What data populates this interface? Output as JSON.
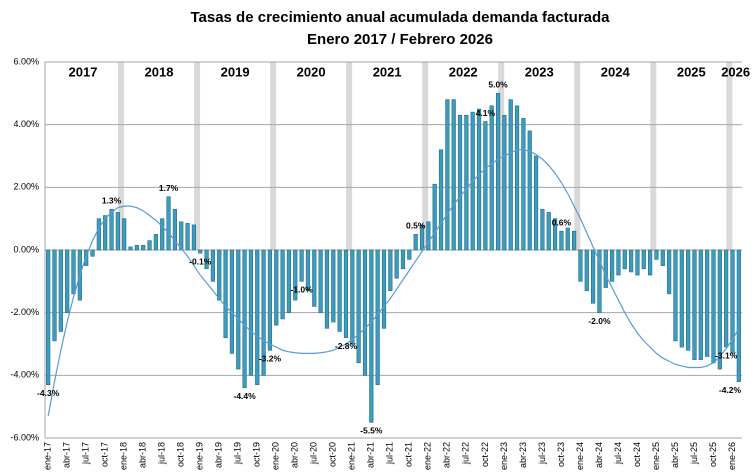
{
  "chart_data": {
    "type": "bar",
    "title": "Tasas de crecimiento anual acumulada demanda facturada",
    "subtitle": "Enero 2017 / Febrero 2026",
    "year_labels": [
      "2017",
      "2018",
      "2019",
      "2020",
      "2021",
      "2022",
      "2023",
      "2024",
      "2025",
      "2026"
    ],
    "categories": [
      "ene-17",
      null,
      null,
      "abr-17",
      null,
      null,
      "jul-17",
      null,
      null,
      "oct-17",
      null,
      null,
      "ene-18",
      null,
      null,
      "abr-18",
      null,
      null,
      "jul-18",
      null,
      null,
      "oct-18",
      null,
      null,
      "ene-19",
      null,
      null,
      "abr-19",
      null,
      null,
      "jul-19",
      null,
      null,
      "oct-19",
      null,
      null,
      "ene-20",
      null,
      null,
      "abr-20",
      null,
      null,
      "jul-20",
      null,
      null,
      "oct-20",
      null,
      null,
      "ene-21",
      null,
      null,
      "abr-21",
      null,
      null,
      "jul-21",
      null,
      null,
      "oct-21",
      null,
      null,
      "ene-22",
      null,
      null,
      "abr-22",
      null,
      null,
      "jul-22",
      null,
      null,
      "oct-22",
      null,
      null,
      "ene-23",
      null,
      null,
      "abr-23",
      null,
      null,
      "jul-23",
      null,
      null,
      "oct-23",
      null,
      null,
      "ene-24",
      null,
      null,
      "abr-24",
      null,
      null,
      "jul-24",
      null,
      null,
      "oct-24",
      null,
      null,
      "ene-25",
      null,
      null,
      "abr-25",
      null,
      null,
      "jul-25",
      null,
      null,
      "oct-25",
      null,
      null,
      "ene-26",
      null
    ],
    "values": [
      -4.3,
      -2.9,
      -2.6,
      -2.0,
      -1.4,
      -1.6,
      -0.5,
      -0.2,
      1.0,
      1.1,
      1.3,
      1.2,
      1.0,
      0.1,
      0.15,
      0.15,
      0.3,
      0.5,
      1.0,
      1.7,
      1.3,
      0.9,
      0.85,
      0.8,
      -0.1,
      -0.6,
      -1.0,
      -1.6,
      -2.8,
      -3.3,
      -3.8,
      -4.4,
      -4.0,
      -4.3,
      -4.0,
      -3.2,
      -2.4,
      -2.2,
      -2.0,
      -1.6,
      -1.0,
      -1.3,
      -1.8,
      -2.0,
      -2.5,
      -2.3,
      -2.6,
      -2.8,
      -3.0,
      -3.6,
      -4.0,
      -5.5,
      -4.3,
      -2.5,
      -1.3,
      -0.9,
      -0.6,
      -0.3,
      0.5,
      0.8,
      0.9,
      2.1,
      3.2,
      4.8,
      4.8,
      4.3,
      4.3,
      4.4,
      4.5,
      4.1,
      4.6,
      5.0,
      4.3,
      4.8,
      4.6,
      4.2,
      3.8,
      3.0,
      1.3,
      1.2,
      1.0,
      0.6,
      0.7,
      0.6,
      -1.0,
      -1.3,
      -1.7,
      -2.0,
      -1.2,
      -1.0,
      -0.8,
      -0.6,
      -0.7,
      -0.8,
      -0.6,
      -0.8,
      -0.3,
      -0.5,
      -1.4,
      -2.9,
      -3.1,
      -3.2,
      -3.5,
      -3.5,
      -3.4,
      -3.6,
      -3.8,
      -3.1,
      -3.3,
      -4.2
    ],
    "value_labels": [
      "-4.3%",
      null,
      null,
      null,
      null,
      null,
      null,
      null,
      null,
      null,
      "1.3%",
      null,
      null,
      null,
      null,
      null,
      null,
      null,
      null,
      "1.7%",
      null,
      null,
      null,
      null,
      "-0.1%",
      null,
      null,
      null,
      null,
      null,
      null,
      "-4.4%",
      null,
      null,
      null,
      "-3.2%",
      null,
      null,
      null,
      null,
      "-1.0%",
      null,
      null,
      null,
      null,
      null,
      null,
      "-2.8%",
      null,
      null,
      null,
      "-5.5%",
      null,
      null,
      null,
      null,
      null,
      null,
      "0.5%",
      null,
      null,
      null,
      null,
      null,
      null,
      null,
      null,
      null,
      null,
      "4.1%",
      null,
      "5.0%",
      null,
      null,
      null,
      null,
      null,
      null,
      null,
      null,
      null,
      "0.6%",
      null,
      null,
      null,
      null,
      null,
      "-2.0%",
      null,
      null,
      null,
      null,
      null,
      null,
      null,
      null,
      null,
      null,
      null,
      null,
      null,
      null,
      null,
      null,
      null,
      null,
      null,
      "-3.1%",
      null,
      "-4.2%"
    ],
    "color": "#3f9bbb",
    "trend": {
      "color": "#5b9bd5",
      "values": [
        -5.3,
        -4.2,
        -3.2,
        -2.3,
        -1.5,
        -0.8,
        -0.2,
        0.3,
        0.7,
        1.0,
        1.2,
        1.35,
        1.4,
        1.4,
        1.35,
        1.25,
        1.1,
        0.95,
        0.75,
        0.55,
        0.3,
        0.05,
        -0.2,
        -0.5,
        -0.8,
        -1.05,
        -1.3,
        -1.55,
        -1.8,
        -2.0,
        -2.2,
        -2.4,
        -2.6,
        -2.75,
        -2.9,
        -3.0,
        -3.1,
        -3.2,
        -3.25,
        -3.28,
        -3.3,
        -3.3,
        -3.3,
        -3.28,
        -3.25,
        -3.2,
        -3.1,
        -3.0,
        -2.85,
        -2.7,
        -2.5,
        -2.3,
        -2.05,
        -1.8,
        -1.55,
        -1.25,
        -0.95,
        -0.65,
        -0.35,
        -0.05,
        0.25,
        0.55,
        0.85,
        1.15,
        1.45,
        1.7,
        1.95,
        2.2,
        2.4,
        2.6,
        2.75,
        2.9,
        3.0,
        3.1,
        3.2,
        3.2,
        3.15,
        3.05,
        2.9,
        2.7,
        2.45,
        2.15,
        1.8,
        1.4,
        1.0,
        0.55,
        0.1,
        -0.35,
        -0.8,
        -1.2,
        -1.6,
        -2.0,
        -2.35,
        -2.65,
        -2.9,
        -3.1,
        -3.3,
        -3.45,
        -3.55,
        -3.65,
        -3.7,
        -3.75,
        -3.75,
        -3.75,
        -3.7,
        -3.6,
        -3.4,
        -3.15,
        -2.85,
        -2.5
      ]
    },
    "ylim": [
      -6,
      6
    ],
    "yticks": [
      {
        "value": -6,
        "label": "-6.00%"
      },
      {
        "value": -4,
        "label": "-4.00%"
      },
      {
        "value": -2,
        "label": "-2.00%"
      },
      {
        "value": 0,
        "label": "0.00%"
      },
      {
        "value": 2,
        "label": "2.00%"
      },
      {
        "value": 4,
        "label": "4.00%"
      },
      {
        "value": 6,
        "label": "6.00%"
      }
    ],
    "grid": true
  }
}
